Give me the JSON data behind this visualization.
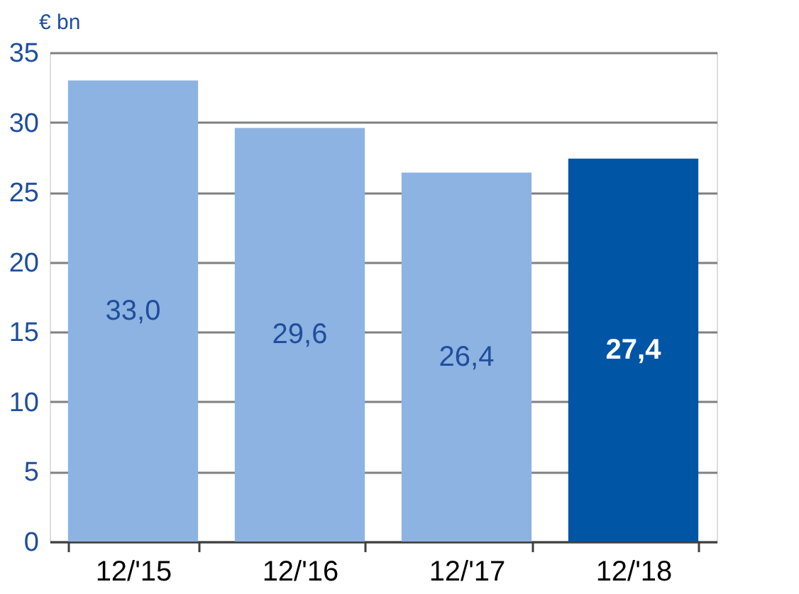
{
  "chart_data": {
    "type": "bar",
    "ylabel": "€ bn",
    "categories": [
      "12/'15",
      "12/'16",
      "12/'17",
      "12/'18"
    ],
    "values": [
      33.0,
      29.6,
      26.4,
      27.4
    ],
    "colors": [
      "#8db3e2",
      "#8db3e2",
      "#8db3e2",
      "#0055a5"
    ],
    "value_labels": [
      "33,0",
      "29,6",
      "26,4",
      "27,4"
    ],
    "ylim": [
      0,
      35
    ],
    "yticks": [
      0,
      5,
      10,
      15,
      20,
      25,
      30,
      35
    ],
    "grid": "y"
  }
}
